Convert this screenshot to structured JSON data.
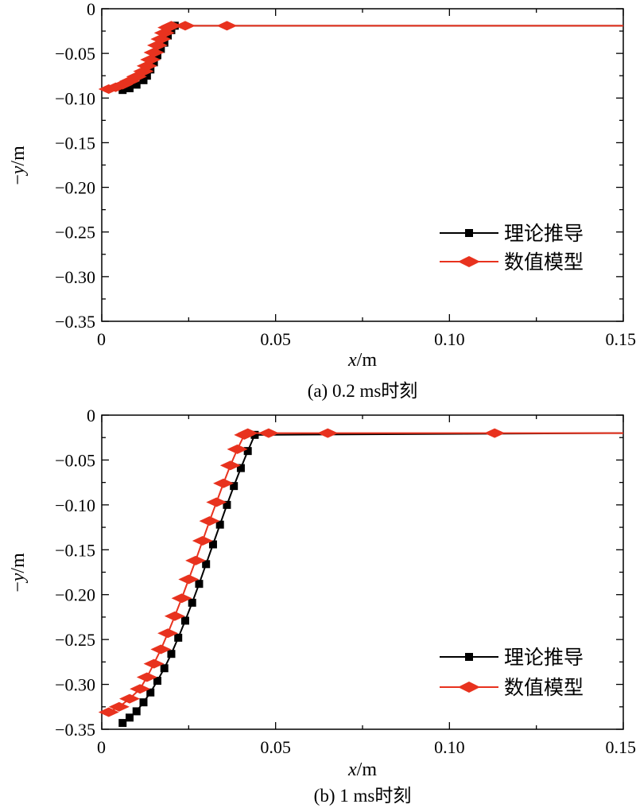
{
  "chart_data": [
    {
      "type": "line",
      "caption": "(a) 0.2 ms时刻",
      "xlabel": "x/m",
      "ylabel": "−y/m",
      "xlim": [
        0,
        0.15
      ],
      "ylim": [
        -0.35,
        0
      ],
      "x_ticks": [
        0,
        0.05,
        0.1,
        0.15
      ],
      "x_tick_labels": [
        "0",
        "0.05",
        "0.10",
        "0.15"
      ],
      "y_ticks": [
        0,
        -0.05,
        -0.1,
        -0.15,
        -0.2,
        -0.25,
        -0.3,
        -0.35
      ],
      "y_tick_labels": [
        "0",
        "−0.05",
        "−0.10",
        "−0.15",
        "−0.20",
        "−0.25",
        "−0.30",
        "−0.35"
      ],
      "legend_position": "bottom-right",
      "series": [
        {
          "name": "理论推导",
          "color": "#000000",
          "marker": "square",
          "x": [
            0.006,
            0.008,
            0.01,
            0.012,
            0.013,
            0.014,
            0.015,
            0.016,
            0.017,
            0.018,
            0.019,
            0.02,
            0.021,
            0.15
          ],
          "y": [
            -0.091,
            -0.089,
            -0.085,
            -0.08,
            -0.075,
            -0.068,
            -0.06,
            -0.052,
            -0.045,
            -0.038,
            -0.03,
            -0.024,
            -0.019,
            -0.019
          ]
        },
        {
          "name": "数值模型",
          "color": "#e8321e",
          "marker": "triangle",
          "x": [
            0.002,
            0.004,
            0.006,
            0.008,
            0.01,
            0.012,
            0.013,
            0.014,
            0.015,
            0.016,
            0.017,
            0.018,
            0.019,
            0.02,
            0.024,
            0.036,
            0.15
          ],
          "y": [
            -0.09,
            -0.088,
            -0.085,
            -0.081,
            -0.076,
            -0.07,
            -0.064,
            -0.057,
            -0.049,
            -0.041,
            -0.034,
            -0.027,
            -0.021,
            -0.019,
            -0.019,
            -0.019,
            -0.019
          ]
        }
      ]
    },
    {
      "type": "line",
      "caption": "(b) 1 ms时刻",
      "xlabel": "x/m",
      "ylabel": "−y/m",
      "xlim": [
        0,
        0.15
      ],
      "ylim": [
        -0.35,
        0
      ],
      "x_ticks": [
        0,
        0.05,
        0.1,
        0.15
      ],
      "x_tick_labels": [
        "0",
        "0.05",
        "0.10",
        "0.15"
      ],
      "y_ticks": [
        0,
        -0.05,
        -0.1,
        -0.15,
        -0.2,
        -0.25,
        -0.3,
        -0.35
      ],
      "y_tick_labels": [
        "0",
        "−0.05",
        "−0.10",
        "−0.15",
        "−0.20",
        "−0.25",
        "−0.30",
        "−0.35"
      ],
      "legend_position": "bottom-right",
      "series": [
        {
          "name": "理论推导",
          "color": "#000000",
          "marker": "square",
          "x": [
            0.006,
            0.008,
            0.01,
            0.012,
            0.014,
            0.016,
            0.018,
            0.02,
            0.022,
            0.024,
            0.026,
            0.028,
            0.03,
            0.032,
            0.034,
            0.036,
            0.038,
            0.04,
            0.042,
            0.044,
            0.15
          ],
          "y": [
            -0.343,
            -0.337,
            -0.33,
            -0.32,
            -0.309,
            -0.296,
            -0.282,
            -0.266,
            -0.248,
            -0.229,
            -0.209,
            -0.188,
            -0.166,
            -0.144,
            -0.122,
            -0.1,
            -0.079,
            -0.059,
            -0.04,
            -0.022,
            -0.02
          ]
        },
        {
          "name": "数值模型",
          "color": "#e8321e",
          "marker": "triangle",
          "x": [
            0.002,
            0.005,
            0.008,
            0.011,
            0.013,
            0.015,
            0.017,
            0.019,
            0.021,
            0.023,
            0.025,
            0.027,
            0.029,
            0.031,
            0.033,
            0.035,
            0.037,
            0.039,
            0.041,
            0.042,
            0.048,
            0.065,
            0.113,
            0.15
          ],
          "y": [
            -0.331,
            -0.325,
            -0.316,
            -0.305,
            -0.292,
            -0.277,
            -0.261,
            -0.243,
            -0.224,
            -0.204,
            -0.183,
            -0.162,
            -0.14,
            -0.118,
            -0.097,
            -0.076,
            -0.056,
            -0.038,
            -0.022,
            -0.02,
            -0.02,
            -0.02,
            -0.02,
            -0.02
          ]
        }
      ]
    }
  ]
}
